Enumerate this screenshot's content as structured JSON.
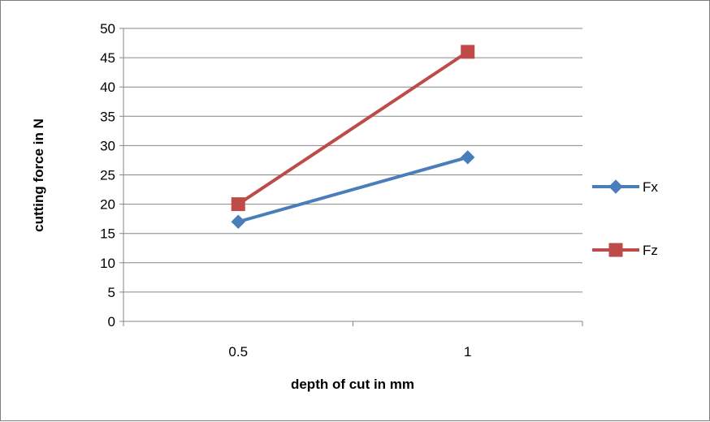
{
  "chart_data": {
    "type": "line",
    "categories": [
      "0.5",
      "1"
    ],
    "series": [
      {
        "name": "Fx",
        "values": [
          17,
          28
        ],
        "color": "#4a7ebb",
        "marker": "diamond"
      },
      {
        "name": "Fz",
        "values": [
          20,
          46
        ],
        "color": "#be4b48",
        "marker": "square"
      }
    ],
    "xlabel": "depth of cut in mm",
    "ylabel": "cutting force in N",
    "ylim": [
      0,
      50
    ],
    "yticks": [
      "0",
      "5",
      "10",
      "15",
      "20",
      "25",
      "30",
      "35",
      "40",
      "45",
      "50"
    ],
    "grid": true,
    "legend": "right"
  }
}
